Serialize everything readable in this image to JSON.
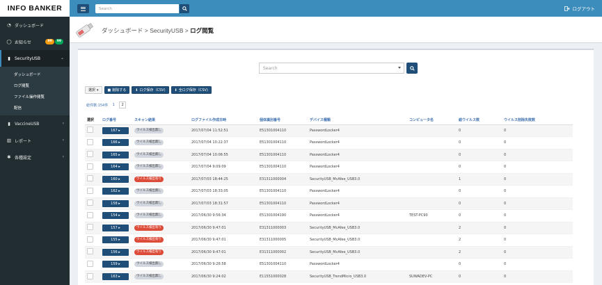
{
  "header": {
    "logo": "INFO BANKER",
    "search_placeholder": "Search",
    "logout": "ログアウト"
  },
  "sidebar": {
    "items": [
      {
        "icon": "dashboard-icon",
        "label": "ダッシュボード"
      },
      {
        "icon": "comment-icon",
        "label": "お知らせ",
        "badges": [
          "99",
          "99"
        ]
      },
      {
        "icon": "usb-icon",
        "label": "SecurityUSB"
      },
      {
        "icon": "usb-icon",
        "label": "VaccineUSB"
      },
      {
        "icon": "chart-icon",
        "label": "レポート"
      },
      {
        "icon": "gear-icon",
        "label": "各種設定"
      }
    ],
    "submenu": [
      "ダッシュボード",
      "ログ閲覧",
      "ファイル操作閲覧",
      "配信"
    ]
  },
  "breadcrumb": {
    "part1": "ダッシュボード > SecurityUSB > ",
    "current": "ログ閲覧"
  },
  "filter": {
    "search_placeholder": "Search"
  },
  "toolbar": {
    "select_label": "選択",
    "delete_label": "削除する",
    "save_label": "ログ保存（CSV)",
    "save_all_label": "全ログ保存（CSV)"
  },
  "pagination": {
    "total": "総件数:154件",
    "page1": "1",
    "page2": "2"
  },
  "table": {
    "columns": [
      "選択",
      "ログ番号",
      "スキャン結果",
      "ログファイル作成日時",
      "個体識別番号",
      "デバイス種類",
      "コンピュータ名",
      "総ウイルス数",
      "ウイルス削除失敗数"
    ],
    "rows": [
      {
        "log": "167",
        "scan": "ウイルス検出無し",
        "detected": false,
        "date": "2017/07/04 11:52:51",
        "serial": "E51301004110",
        "device": "PasswordLocker4",
        "computer": "",
        "total": "0",
        "failed": "0"
      },
      {
        "log": "166",
        "scan": "ウイルス検出無し",
        "detected": false,
        "date": "2017/07/04 10:22:37",
        "serial": "E51301004110",
        "device": "PasswordLocker4",
        "computer": "",
        "total": "0",
        "failed": "0"
      },
      {
        "log": "165",
        "scan": "ウイルス検出無し",
        "detected": false,
        "date": "2017/07/04 10:06:55",
        "serial": "E51301004110",
        "device": "PasswordLocker4",
        "computer": "",
        "total": "0",
        "failed": "0"
      },
      {
        "log": "164",
        "scan": "ウイルス検出無し",
        "detected": false,
        "date": "2017/07/04 9:09:09",
        "serial": "E51301004110",
        "device": "PasswordLocker4",
        "computer": "",
        "total": "0",
        "failed": "0"
      },
      {
        "log": "160",
        "scan": "ウイルス検出有り",
        "detected": true,
        "date": "2017/07/03 18:44:25",
        "serial": "E31311000004",
        "device": "SecurityUSB_McAfee_USB3.0",
        "computer": "",
        "total": "1",
        "failed": "0"
      },
      {
        "log": "162",
        "scan": "ウイルス検出無し",
        "detected": false,
        "date": "2017/07/03 18:33:05",
        "serial": "E51301004110",
        "device": "PasswordLocker4",
        "computer": "",
        "total": "0",
        "failed": "0"
      },
      {
        "log": "158",
        "scan": "ウイルス検出無し",
        "detected": false,
        "date": "2017/07/03 18:31:57",
        "serial": "E51301004110",
        "device": "PasswordLocker4",
        "computer": "",
        "total": "0",
        "failed": "0"
      },
      {
        "log": "154",
        "scan": "ウイルス検出無し",
        "detected": false,
        "date": "2017/06/30 9:56:34",
        "serial": "E51301004190",
        "device": "PasswordLocker4",
        "computer": "TEST-PC90",
        "total": "0",
        "failed": "0"
      },
      {
        "log": "157",
        "scan": "ウイルス検出有り",
        "detected": true,
        "date": "2017/06/30 9:47:01",
        "serial": "E31311000003",
        "device": "SecurityUSB_McAfee_USB3.0",
        "computer": "",
        "total": "2",
        "failed": "0"
      },
      {
        "log": "155",
        "scan": "ウイルス検出有り",
        "detected": true,
        "date": "2017/06/30 9:47:01",
        "serial": "E31311000005",
        "device": "SecurityUSB_McAfee_USB3.0",
        "computer": "",
        "total": "2",
        "failed": "0"
      },
      {
        "log": "156",
        "scan": "ウイルス検出有り",
        "detected": true,
        "date": "2017/06/30 9:47:01",
        "serial": "E31311000002",
        "device": "SecurityUSB_McAfee_USB3.0",
        "computer": "",
        "total": "2",
        "failed": "0"
      },
      {
        "log": "159",
        "scan": "ウイルス検出無し",
        "detected": false,
        "date": "2017/06/30 9:26:58",
        "serial": "E51301004110",
        "device": "PasswordLocker4",
        "computer": "",
        "total": "0",
        "failed": "0"
      },
      {
        "log": "163",
        "scan": "ウイルス検出無し",
        "detected": false,
        "date": "2017/06/30 9:24:02",
        "serial": "E11551000028",
        "device": "SecurityUSB_TrendMicro_USB3.0",
        "computer": "SUWADEV-PC",
        "total": "0",
        "failed": "0"
      }
    ]
  }
}
